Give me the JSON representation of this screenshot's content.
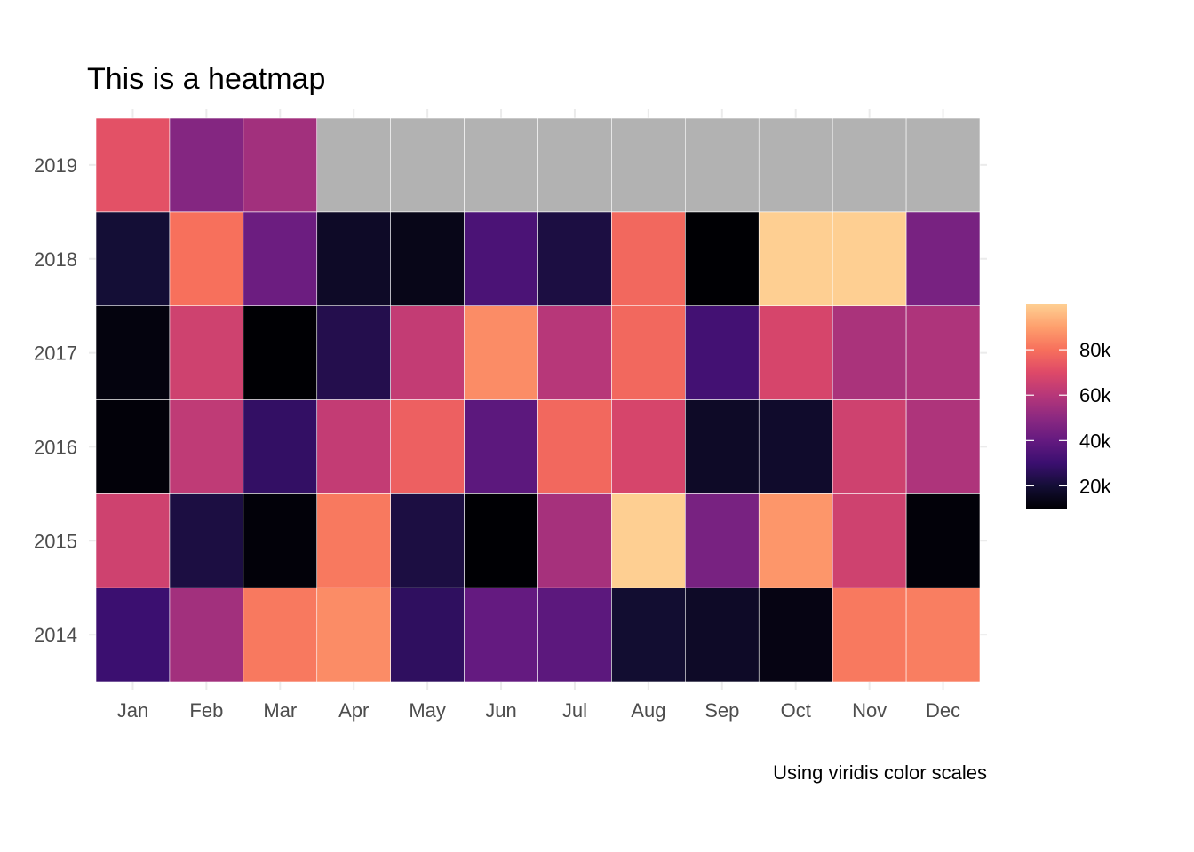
{
  "chart_data": {
    "type": "heatmap",
    "title": "This is a heatmap",
    "caption": "Using viridis color scales",
    "x_categories": [
      "Jan",
      "Feb",
      "Mar",
      "Apr",
      "May",
      "Jun",
      "Jul",
      "Aug",
      "Sep",
      "Oct",
      "Nov",
      "Dec"
    ],
    "y_categories": [
      "2014",
      "2015",
      "2016",
      "2017",
      "2018",
      "2019"
    ],
    "values": [
      [
        30000,
        55000,
        82000,
        86000,
        27000,
        40000,
        38000,
        19000,
        17000,
        13000,
        82000,
        83000
      ],
      [
        66000,
        22000,
        11000,
        82000,
        22000,
        8000,
        56000,
        100000,
        45000,
        88000,
        66000,
        11000
      ],
      [
        11000,
        62000,
        28000,
        63000,
        76000,
        38000,
        78000,
        68000,
        17000,
        18000,
        66000,
        58000
      ],
      [
        12000,
        66000,
        8000,
        24000,
        63000,
        86000,
        60000,
        78000,
        32000,
        68000,
        57000,
        58000
      ],
      [
        20000,
        80000,
        42000,
        17000,
        14000,
        34000,
        22000,
        78000,
        8000,
        100000,
        100000,
        45000
      ],
      [
        72000,
        48000,
        55000,
        null,
        null,
        null,
        null,
        null,
        null,
        null,
        null,
        null
      ]
    ],
    "na_color": "#b2b2b2",
    "legend": {
      "tick_labels": [
        "20k",
        "40k",
        "60k",
        "80k"
      ],
      "tick_values": [
        20000,
        40000,
        60000,
        80000
      ],
      "range": [
        10000,
        100000
      ],
      "position": "right"
    },
    "colormap": [
      "#000004",
      "#140e36",
      "#3b0f70",
      "#641a80",
      "#8c2981",
      "#b73779",
      "#de4968",
      "#f7705c",
      "#fe9f6d",
      "#fecf92"
    ],
    "grid": true
  }
}
